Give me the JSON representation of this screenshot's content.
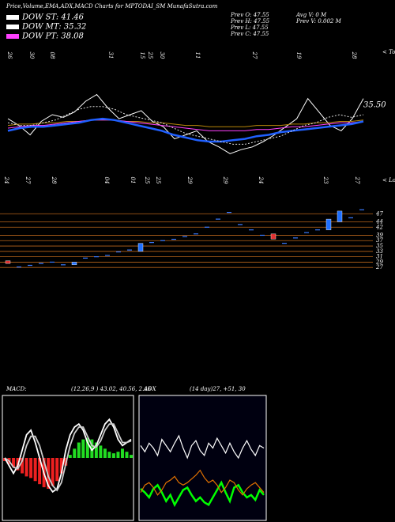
{
  "header": {
    "title": "Price,Volume,EMA,ADX,MACD Charts for MPTODAI_SM MunafaSutra.com",
    "dow": [
      "DOW ST: 41.46",
      "DOW MT: 35.32",
      "DOW PT: 38.08"
    ],
    "prev": [
      "Prev  O: 47.55",
      "Prev  H: 47.55",
      "Prev  L: 47.55",
      "Prev  C: 47.55"
    ],
    "volume": [
      "Avg V: 0  M",
      "Prev  V: 0.002  M"
    ]
  },
  "chart_data": [
    {
      "type": "line",
      "tops_labels": [
        "26",
        "30",
        "08",
        "31",
        "15",
        "25",
        "30",
        "11",
        "27",
        "19",
        "28"
      ],
      "lows_labels": [
        "24",
        "27",
        "28",
        "04",
        "01",
        "25",
        "25",
        "29",
        "29",
        "24",
        "23",
        "27"
      ],
      "tops_marker": "< Tops",
      "lows_marker": "< Lows",
      "last_label": "35.50",
      "ylim": [
        0,
        100
      ],
      "series": [
        {
          "color": "#ffffff",
          "values": [
            47,
            42,
            35,
            45,
            50,
            48,
            52,
            60,
            65,
            55,
            47,
            50,
            53,
            45,
            41,
            32,
            35,
            38,
            30,
            26,
            21,
            24,
            26,
            30,
            35,
            41,
            47,
            62,
            52,
            42,
            38,
            47,
            62
          ]
        },
        {
          "color": "#b8860b",
          "values": [
            42,
            43,
            43,
            44,
            44,
            45,
            45,
            46,
            46,
            46,
            45,
            45,
            44,
            44,
            43,
            42,
            42,
            41,
            41,
            41,
            41,
            42,
            42,
            42,
            43,
            43,
            44,
            44,
            45,
            45,
            46
          ]
        },
        {
          "color": "#ff40ff",
          "values": [
            40,
            41,
            42,
            42,
            43,
            44,
            45,
            46,
            46,
            46,
            45,
            44,
            43,
            42,
            41,
            40,
            39,
            38,
            38,
            38,
            38,
            39,
            39,
            40,
            41,
            41,
            42,
            43,
            44,
            44,
            45
          ]
        },
        {
          "color": "#2060ff",
          "values": [
            38,
            40,
            41,
            41,
            42,
            43,
            44,
            46,
            47,
            46,
            44,
            42,
            40,
            38,
            35,
            33,
            31,
            30,
            30,
            31,
            32,
            34,
            35,
            37,
            38,
            39,
            40,
            41,
            42,
            43,
            45
          ]
        },
        {
          "color": "#dddddd",
          "values": [
            44,
            42,
            42,
            44,
            46,
            50,
            54,
            56,
            56,
            54,
            50,
            48,
            46,
            44,
            40,
            36,
            34,
            32,
            30,
            28,
            28,
            30,
            32,
            34,
            38,
            42,
            44,
            48,
            50,
            48,
            50
          ]
        }
      ]
    },
    {
      "type": "candlestick",
      "ylim": [
        25,
        51.5
      ],
      "yticks": [
        47,
        44,
        42,
        39,
        37,
        35,
        33,
        31,
        29,
        27
      ],
      "grid": true,
      "up_color": "#1e6fff",
      "down_color": "#e03030",
      "open": [
        29.5,
        null,
        null,
        null,
        null,
        null,
        28,
        null,
        null,
        null,
        null,
        null,
        33,
        null,
        null,
        null,
        null,
        null,
        null,
        null,
        null,
        null,
        null,
        null,
        39.5,
        null,
        null,
        null,
        null,
        41,
        44,
        null,
        null
      ],
      "close": [
        28.5,
        27.2,
        27.8,
        28.5,
        29,
        28,
        29,
        30.5,
        31,
        31.5,
        32.8,
        33.5,
        36,
        36.3,
        37,
        37.5,
        38.5,
        39.5,
        42,
        45,
        47.5,
        43,
        41,
        39,
        37.6,
        36,
        38,
        40,
        41,
        45,
        48,
        45.5,
        48.5
      ]
    },
    {
      "type": "macd",
      "title": "MACD:",
      "subtitle": "(12,26,9 ) 43.02, 40.56, 2.46",
      "ylim": [
        -40,
        40
      ],
      "histogram": [
        -2,
        -4,
        -6,
        -8,
        -10,
        -12,
        -13,
        -15,
        -17,
        -19,
        -20,
        -18,
        -15,
        -10,
        -5,
        2,
        6,
        10,
        12,
        13,
        12,
        10,
        8,
        6,
        4,
        3,
        4,
        6,
        4,
        2
      ],
      "series": [
        {
          "color": "#ffffff",
          "values": [
            0,
            -5,
            -10,
            -5,
            5,
            15,
            18,
            10,
            0,
            -10,
            -18,
            -22,
            -20,
            -10,
            5,
            15,
            20,
            22,
            18,
            10,
            5,
            8,
            15,
            22,
            25,
            20,
            12,
            8,
            10,
            12
          ]
        },
        {
          "color": "#cccccc",
          "values": [
            0,
            -2,
            -6,
            -7,
            -2,
            8,
            14,
            14,
            8,
            -2,
            -12,
            -18,
            -21,
            -16,
            -4,
            8,
            16,
            20,
            20,
            14,
            8,
            7,
            11,
            18,
            22,
            22,
            16,
            10,
            10,
            11
          ]
        }
      ]
    },
    {
      "type": "adx",
      "title": "ADX",
      "subtitle": "(14 day)27, +51, 30",
      "ylim": [
        0,
        100
      ],
      "series": [
        {
          "color": "#ffffff",
          "values": [
            60,
            55,
            62,
            58,
            52,
            65,
            60,
            55,
            62,
            68,
            58,
            50,
            60,
            64,
            56,
            52,
            62,
            58,
            66,
            60,
            54,
            62,
            55,
            50,
            58,
            64,
            57,
            52,
            60,
            58
          ]
        },
        {
          "color": "#00ff00",
          "values": [
            25,
            22,
            18,
            25,
            28,
            22,
            15,
            20,
            12,
            18,
            24,
            26,
            20,
            15,
            18,
            14,
            12,
            18,
            24,
            30,
            22,
            15,
            26,
            28,
            22,
            18,
            20,
            16,
            24,
            20
          ]
        },
        {
          "color": "#e07000",
          "values": [
            22,
            28,
            30,
            26,
            20,
            24,
            30,
            32,
            35,
            30,
            28,
            30,
            33,
            36,
            40,
            34,
            30,
            32,
            28,
            22,
            26,
            32,
            30,
            24,
            20,
            25,
            28,
            30,
            26,
            22
          ]
        }
      ]
    }
  ]
}
